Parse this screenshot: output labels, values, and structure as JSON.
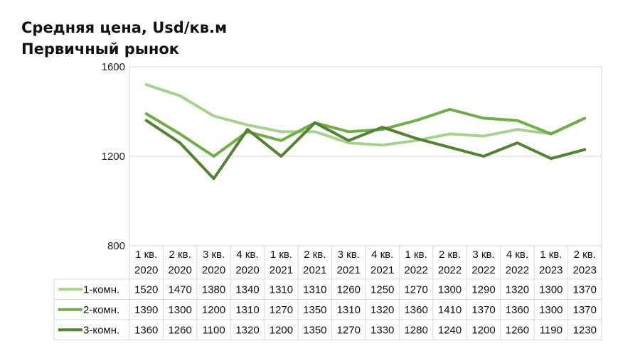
{
  "title": {
    "line1": "Средняя цена, Usd/кв.м",
    "line2": "Первичный рынок"
  },
  "chart_data": {
    "type": "line",
    "title": "Средняя цена, Usd/кв.м Первичный рынок",
    "categories": [
      [
        "1 кв.",
        "2020"
      ],
      [
        "2 кв.",
        "2020"
      ],
      [
        "3 кв.",
        "2020"
      ],
      [
        "4 кв.",
        "2020"
      ],
      [
        "1 кв.",
        "2021"
      ],
      [
        "2 кв.",
        "2021"
      ],
      [
        "3 кв.",
        "2021"
      ],
      [
        "4 кв.",
        "2021"
      ],
      [
        "1 кв.",
        "2022"
      ],
      [
        "2 кв.",
        "2022"
      ],
      [
        "3 кв.",
        "2022"
      ],
      [
        "4 кв.",
        "2022"
      ],
      [
        "1 кв.",
        "2023"
      ],
      [
        "2 кв.",
        "2023"
      ]
    ],
    "series": [
      {
        "name": "1-комн.",
        "color": "#a9d18e",
        "values": [
          1520,
          1470,
          1380,
          1340,
          1310,
          1310,
          1260,
          1250,
          1270,
          1300,
          1290,
          1320,
          1300,
          1370
        ]
      },
      {
        "name": "2-комн.",
        "color": "#70ad47",
        "values": [
          1390,
          1300,
          1200,
          1310,
          1270,
          1350,
          1310,
          1320,
          1360,
          1410,
          1370,
          1360,
          1300,
          1370
        ]
      },
      {
        "name": "3-комн.",
        "color": "#548235",
        "values": [
          1360,
          1260,
          1100,
          1320,
          1200,
          1350,
          1270,
          1330,
          1280,
          1240,
          1200,
          1260,
          1190,
          1230
        ]
      }
    ],
    "ylim": [
      800,
      1600
    ],
    "yticks": [
      800,
      1200,
      1600
    ],
    "grid": true,
    "legend": "data-table"
  }
}
